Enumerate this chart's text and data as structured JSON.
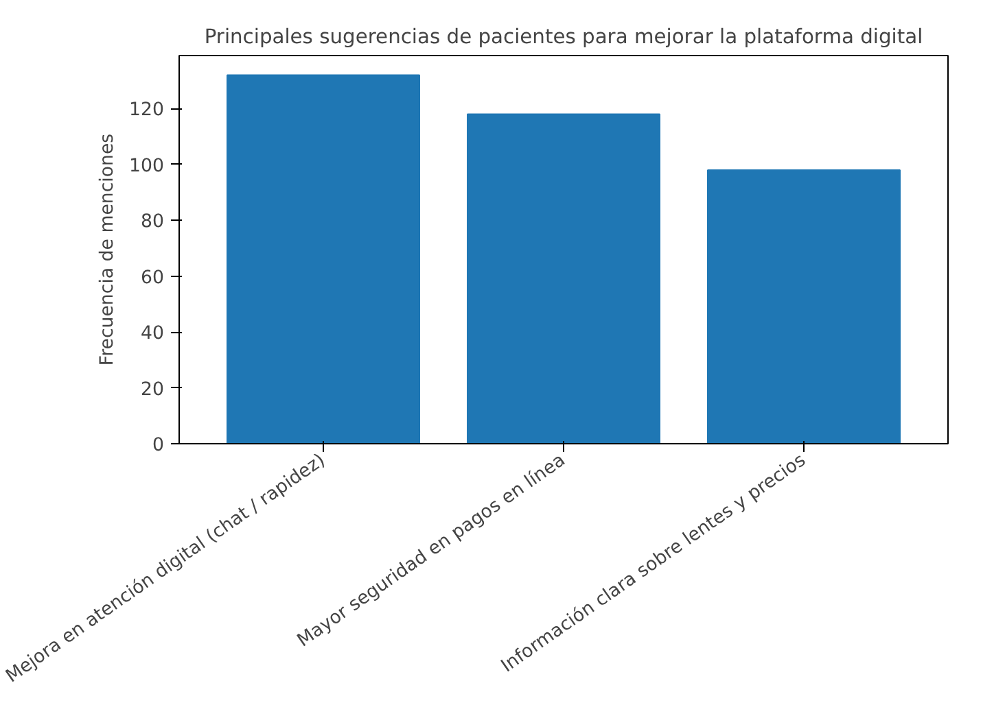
{
  "chart_data": {
    "type": "bar",
    "title": "Principales sugerencias de pacientes para mejorar la plataforma digital",
    "ylabel": "Frecuencia de menciones",
    "categories": [
      "Mejora en atención digital (chat / rapidez)",
      "Mayor seguridad en pagos en línea",
      "Información clara sobre lentes y precios"
    ],
    "values": [
      132,
      118,
      98
    ],
    "color": "#1f77b4",
    "ylim": [
      0,
      139
    ],
    "yticks": [
      0,
      20,
      40,
      60,
      80,
      100,
      120
    ],
    "grid": false
  }
}
